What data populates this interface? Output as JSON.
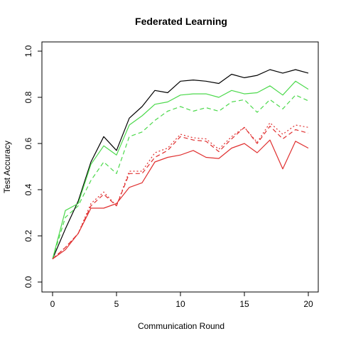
{
  "chart_data": {
    "type": "line",
    "title": "Federated Learning",
    "xlabel": "Communication Round",
    "ylabel": "Test Accuracy",
    "xlim": [
      0,
      20
    ],
    "ylim": [
      0,
      1
    ],
    "grid": false,
    "xticks": [
      0,
      5,
      10,
      15,
      20
    ],
    "yticks": [
      0.0,
      0.2,
      0.4,
      0.6,
      0.8,
      1.0
    ],
    "ytick_labels": [
      "0.0",
      "0.2",
      "0.4",
      "0.6",
      "0.8",
      "1.0"
    ],
    "x": [
      0,
      1,
      2,
      3,
      4,
      5,
      6,
      7,
      8,
      9,
      10,
      11,
      12,
      13,
      14,
      15,
      16,
      17,
      18,
      19,
      20
    ],
    "series": [
      {
        "color": "#000000",
        "linestyle": "solid",
        "values": [
          0.1,
          0.23,
          0.35,
          0.52,
          0.63,
          0.57,
          0.71,
          0.76,
          0.83,
          0.82,
          0.87,
          0.875,
          0.87,
          0.86,
          0.9,
          0.885,
          0.895,
          0.92,
          0.905,
          0.92,
          0.905
        ]
      },
      {
        "color": "#4cd94c",
        "linestyle": "solid",
        "values": [
          0.1,
          0.31,
          0.34,
          0.51,
          0.59,
          0.55,
          0.68,
          0.72,
          0.77,
          0.78,
          0.81,
          0.815,
          0.815,
          0.8,
          0.83,
          0.815,
          0.82,
          0.85,
          0.81,
          0.87,
          0.835
        ]
      },
      {
        "color": "#4cd94c",
        "linestyle": "dashed",
        "values": [
          0.1,
          0.28,
          0.33,
          0.44,
          0.52,
          0.47,
          0.63,
          0.65,
          0.7,
          0.74,
          0.76,
          0.74,
          0.755,
          0.74,
          0.78,
          0.79,
          0.735,
          0.79,
          0.75,
          0.81,
          0.785
        ]
      },
      {
        "color": "#e03030",
        "linestyle": "dotted",
        "values": [
          0.1,
          0.15,
          0.21,
          0.34,
          0.39,
          0.33,
          0.48,
          0.48,
          0.56,
          0.58,
          0.64,
          0.625,
          0.62,
          0.575,
          0.63,
          0.67,
          0.605,
          0.69,
          0.64,
          0.68,
          0.67
        ]
      },
      {
        "color": "#e03030",
        "linestyle": "dashed",
        "values": [
          0.1,
          0.15,
          0.21,
          0.33,
          0.38,
          0.33,
          0.47,
          0.47,
          0.54,
          0.57,
          0.63,
          0.615,
          0.61,
          0.565,
          0.62,
          0.67,
          0.6,
          0.675,
          0.62,
          0.66,
          0.645
        ]
      },
      {
        "color": "#e03030",
        "linestyle": "solid",
        "values": [
          0.1,
          0.14,
          0.21,
          0.32,
          0.32,
          0.34,
          0.41,
          0.43,
          0.52,
          0.54,
          0.55,
          0.57,
          0.54,
          0.535,
          0.58,
          0.6,
          0.56,
          0.615,
          0.49,
          0.61,
          0.58
        ]
      }
    ]
  }
}
